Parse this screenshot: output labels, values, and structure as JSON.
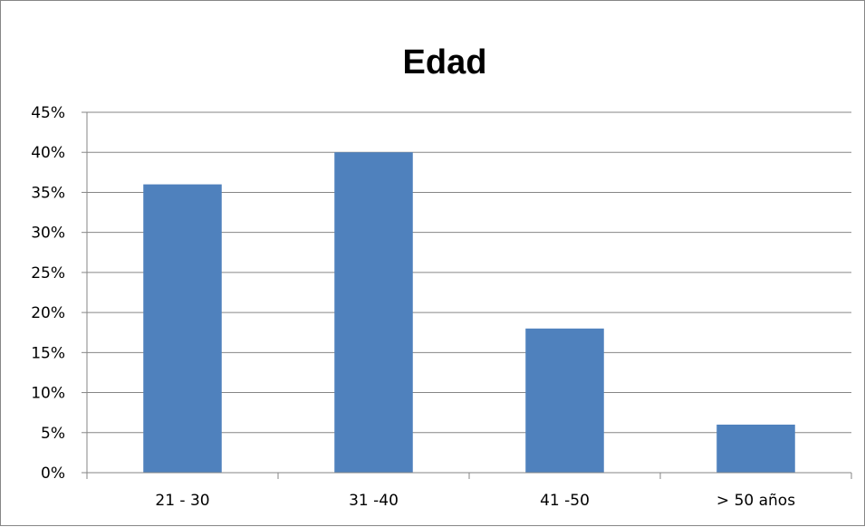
{
  "chart_data": {
    "type": "bar",
    "title": "Edad",
    "xlabel": "",
    "ylabel": "",
    "categories": [
      "21 - 30",
      "31 -40",
      "41 -50",
      "> 50 años"
    ],
    "values": [
      36,
      40,
      18,
      6
    ],
    "ylim": [
      0,
      45
    ],
    "yticks": [
      0,
      5,
      10,
      15,
      20,
      25,
      30,
      35,
      40,
      45
    ],
    "ytick_labels": [
      "0%",
      "5%",
      "10%",
      "15%",
      "20%",
      "25%",
      "30%",
      "35%",
      "40%",
      "45%"
    ],
    "grid": true,
    "legend": "none",
    "bar_color": "#4F81BD",
    "grid_color": "#868686"
  }
}
